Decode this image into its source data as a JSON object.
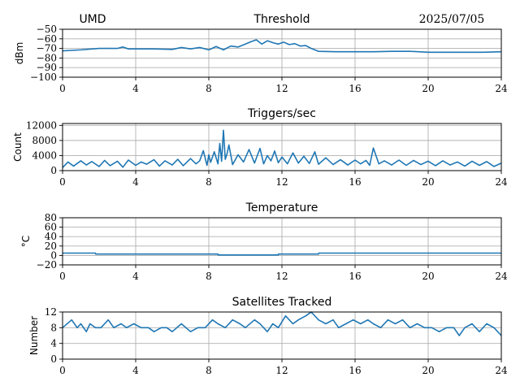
{
  "header": {
    "site": "UMD",
    "date": "2025/07/05"
  },
  "colors": {
    "series": "#1f77b4",
    "grid": "#b0b0b0"
  },
  "chart_data": [
    {
      "id": "threshold",
      "type": "line",
      "title": "Threshold",
      "ylabel": "dBm",
      "xlim": [
        0,
        24
      ],
      "ylim": [
        -100,
        -50
      ],
      "xticks": [
        0,
        4,
        8,
        12,
        16,
        20,
        24
      ],
      "yticks": [
        -50,
        -60,
        -70,
        -80,
        -90,
        -100
      ],
      "grid": true,
      "x": [
        0,
        1,
        2,
        3,
        3.3,
        3.6,
        4,
        5,
        6,
        6.5,
        7,
        7.5,
        8,
        8.4,
        8.8,
        9.2,
        9.6,
        10,
        10.3,
        10.6,
        10.9,
        11.2,
        11.5,
        11.8,
        12.1,
        12.4,
        12.7,
        13,
        13.3,
        13.6,
        14,
        15,
        16,
        17,
        18,
        19,
        20,
        21,
        22,
        23,
        24
      ],
      "values": [
        -72.5,
        -71.5,
        -70,
        -70,
        -68.5,
        -70.5,
        -70.5,
        -70.5,
        -71,
        -69,
        -70.5,
        -69,
        -71.5,
        -68,
        -71.5,
        -67.5,
        -68.5,
        -65.5,
        -63,
        -61,
        -65.5,
        -62,
        -64,
        -65.5,
        -63.5,
        -66,
        -65,
        -67.5,
        -67,
        -70,
        -73,
        -73.5,
        -73.5,
        -73.5,
        -73,
        -73,
        -74,
        -74,
        -74,
        -74,
        -73.5
      ]
    },
    {
      "id": "triggers",
      "type": "line",
      "title": "Triggers/sec",
      "ylabel": "Count",
      "xlim": [
        0,
        24
      ],
      "ylim": [
        0,
        12500
      ],
      "xticks": [
        0,
        4,
        8,
        12,
        16,
        20,
        24
      ],
      "yticks": [
        0,
        4000,
        8000,
        12000
      ],
      "grid": true,
      "x": [
        0,
        0.3,
        0.6,
        1,
        1.3,
        1.6,
        2,
        2.3,
        2.6,
        3,
        3.3,
        3.6,
        4,
        4.3,
        4.6,
        5,
        5.3,
        5.6,
        6,
        6.3,
        6.6,
        7,
        7.3,
        7.5,
        7.7,
        7.9,
        8,
        8.1,
        8.3,
        8.5,
        8.6,
        8.7,
        8.8,
        8.9,
        9,
        9.1,
        9.3,
        9.6,
        9.9,
        10.2,
        10.5,
        10.8,
        11,
        11.2,
        11.4,
        11.6,
        11.8,
        12,
        12.3,
        12.6,
        12.9,
        13.2,
        13.5,
        13.8,
        14,
        14.4,
        14.8,
        15.2,
        15.6,
        16,
        16.3,
        16.6,
        16.8,
        17,
        17.3,
        17.6,
        18,
        18.4,
        18.8,
        19.2,
        19.6,
        20,
        20.4,
        20.8,
        21.2,
        21.6,
        22,
        22.4,
        22.8,
        23.2,
        23.6,
        24
      ],
      "values": [
        800,
        2300,
        1200,
        2600,
        1500,
        2400,
        1100,
        2700,
        1300,
        2500,
        900,
        2800,
        1400,
        2300,
        1700,
        2900,
        1200,
        2600,
        1500,
        3000,
        1300,
        3200,
        1800,
        2600,
        5300,
        1400,
        4200,
        2200,
        5000,
        1800,
        7200,
        2500,
        10700,
        3000,
        4500,
        6800,
        1600,
        4200,
        2300,
        5600,
        2000,
        5900,
        1800,
        4000,
        2600,
        5200,
        2100,
        3600,
        1800,
        4700,
        2000,
        3800,
        1900,
        5000,
        1700,
        3400,
        1600,
        2900,
        1500,
        2800,
        1800,
        2700,
        1400,
        6000,
        1800,
        2600,
        1500,
        2800,
        1400,
        2700,
        1600,
        2500,
        1300,
        2600,
        1500,
        2300,
        1200,
        2500,
        1400,
        2400,
        1100,
        2000
      ]
    },
    {
      "id": "temperature",
      "type": "line",
      "title": "Temperature",
      "ylabel": "°C",
      "xlim": [
        0,
        24
      ],
      "ylim": [
        -20,
        80
      ],
      "xticks": [
        0,
        4,
        8,
        12,
        16,
        20,
        24
      ],
      "yticks": [
        -20,
        0,
        20,
        40,
        60,
        80
      ],
      "grid": true,
      "x": [
        0,
        1.8,
        1.81,
        8.5,
        8.51,
        11.8,
        11.81,
        14,
        14.01,
        24
      ],
      "values": [
        5,
        5,
        3,
        3,
        1,
        1,
        3,
        3,
        5,
        5
      ]
    },
    {
      "id": "satellites",
      "type": "line",
      "title": "Satellites Tracked",
      "ylabel": "Number",
      "xlim": [
        0,
        24
      ],
      "ylim": [
        0,
        12
      ],
      "xticks": [
        0,
        4,
        8,
        12,
        16,
        20,
        24
      ],
      "yticks": [
        0,
        4,
        8,
        12
      ],
      "grid": true,
      "x": [
        0,
        0.5,
        0.8,
        1,
        1.3,
        1.5,
        1.8,
        2.1,
        2.5,
        2.8,
        3.2,
        3.5,
        3.9,
        4.3,
        4.7,
        5,
        5.4,
        5.7,
        6,
        6.5,
        7,
        7.4,
        7.8,
        8.2,
        8.5,
        8.9,
        9.3,
        9.7,
        10,
        10.5,
        10.8,
        11.2,
        11.5,
        11.8,
        12.2,
        12.6,
        12.9,
        13.3,
        13.6,
        14,
        14.4,
        14.8,
        15.1,
        15.5,
        15.9,
        16.3,
        16.7,
        17,
        17.4,
        17.8,
        18.2,
        18.6,
        19,
        19.4,
        19.8,
        20.2,
        20.6,
        21,
        21.4,
        21.7,
        22,
        22.4,
        22.8,
        23.2,
        23.6,
        24
      ],
      "values": [
        8,
        10,
        8,
        9,
        7,
        9,
        8,
        8,
        10,
        8,
        9,
        8,
        9,
        8,
        8,
        7,
        8,
        8,
        7,
        9,
        7,
        8,
        8,
        10,
        9,
        8,
        10,
        9,
        8,
        10,
        9,
        7,
        9,
        8,
        11,
        9,
        10,
        11,
        12,
        10,
        9,
        10,
        8,
        9,
        10,
        9,
        10,
        9,
        8,
        10,
        9,
        10,
        8,
        9,
        8,
        8,
        7,
        8,
        8,
        6,
        8,
        9,
        7,
        9,
        8,
        6
      ]
    }
  ]
}
